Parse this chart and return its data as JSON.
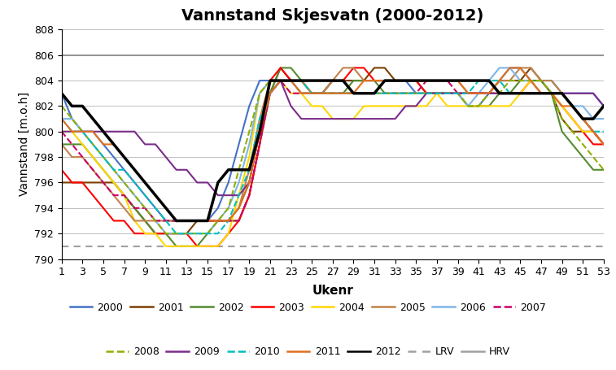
{
  "title": "Vannstand Skjesvatn (2000-2012)",
  "xlabel": "Ukenr",
  "ylabel": "Vannstand [m.o.h]",
  "ylim": [
    790,
    808
  ],
  "xlim": [
    1,
    53
  ],
  "xticks": [
    1,
    3,
    5,
    7,
    9,
    11,
    13,
    15,
    17,
    19,
    21,
    23,
    25,
    27,
    29,
    31,
    33,
    35,
    37,
    39,
    41,
    43,
    45,
    47,
    49,
    51,
    53
  ],
  "yticks": [
    790,
    792,
    794,
    796,
    798,
    800,
    802,
    804,
    806,
    808
  ],
  "hrv": 806,
  "lrv": 791,
  "series": {
    "2000": {
      "color": "#4472C4",
      "linestyle": "solid",
      "linewidth": 1.5,
      "values": [
        803,
        801,
        800,
        800,
        799,
        798,
        797,
        796,
        795,
        794,
        793,
        793,
        793,
        793,
        793,
        794,
        796,
        799,
        802,
        804,
        804,
        804,
        804,
        803,
        803,
        803,
        804,
        804,
        804,
        804,
        804,
        804,
        804,
        804,
        803,
        803,
        803,
        803,
        803,
        802,
        802,
        803,
        804,
        805,
        805,
        804,
        804,
        804,
        803,
        803,
        803,
        803,
        802
      ]
    },
    "2001": {
      "color": "#7B3F00",
      "linestyle": "solid",
      "linewidth": 1.5,
      "values": [
        796,
        796,
        796,
        796,
        796,
        796,
        795,
        794,
        793,
        792,
        792,
        792,
        792,
        793,
        793,
        793,
        793,
        793,
        795,
        799,
        803,
        805,
        804,
        804,
        803,
        803,
        804,
        804,
        804,
        804,
        805,
        805,
        804,
        804,
        804,
        803,
        803,
        803,
        803,
        803,
        803,
        803,
        804,
        804,
        804,
        805,
        804,
        803,
        801,
        800,
        800,
        800,
        799
      ]
    },
    "2002": {
      "color": "#558B2F",
      "linestyle": "solid",
      "linewidth": 1.5,
      "values": [
        799,
        799,
        799,
        798,
        797,
        796,
        795,
        794,
        793,
        792,
        792,
        791,
        791,
        791,
        792,
        793,
        793,
        794,
        796,
        800,
        803,
        805,
        805,
        804,
        803,
        803,
        803,
        803,
        804,
        804,
        804,
        803,
        803,
        803,
        803,
        803,
        803,
        803,
        803,
        802,
        802,
        802,
        803,
        803,
        804,
        804,
        804,
        803,
        800,
        799,
        798,
        797,
        797
      ]
    },
    "2003": {
      "color": "#FF0000",
      "linestyle": "solid",
      "linewidth": 1.5,
      "values": [
        797,
        796,
        796,
        795,
        794,
        793,
        793,
        792,
        792,
        792,
        792,
        792,
        792,
        791,
        791,
        791,
        792,
        793,
        795,
        799,
        804,
        805,
        804,
        804,
        804,
        804,
        804,
        804,
        805,
        805,
        804,
        804,
        804,
        804,
        804,
        803,
        803,
        803,
        803,
        803,
        803,
        803,
        803,
        803,
        803,
        804,
        803,
        803,
        802,
        801,
        800,
        799,
        799
      ]
    },
    "2004": {
      "color": "#FFD700",
      "linestyle": "solid",
      "linewidth": 1.5,
      "values": [
        800,
        800,
        799,
        798,
        797,
        796,
        795,
        793,
        792,
        792,
        791,
        791,
        791,
        791,
        791,
        791,
        792,
        795,
        798,
        803,
        804,
        804,
        803,
        803,
        802,
        802,
        801,
        801,
        801,
        802,
        802,
        802,
        802,
        802,
        802,
        802,
        803,
        802,
        802,
        802,
        802,
        802,
        802,
        802,
        803,
        804,
        803,
        803,
        802,
        801,
        800,
        800,
        799
      ]
    },
    "2005": {
      "color": "#C0834B",
      "linestyle": "solid",
      "linewidth": 1.5,
      "values": [
        799,
        798,
        798,
        797,
        796,
        795,
        794,
        793,
        793,
        793,
        793,
        793,
        793,
        793,
        793,
        793,
        793,
        794,
        797,
        801,
        804,
        804,
        804,
        804,
        803,
        803,
        804,
        805,
        805,
        804,
        804,
        804,
        804,
        804,
        804,
        804,
        804,
        804,
        804,
        803,
        803,
        803,
        804,
        804,
        805,
        805,
        804,
        804,
        803,
        802,
        801,
        800,
        799
      ]
    },
    "2006": {
      "color": "#7EB5E8",
      "linestyle": "solid",
      "linewidth": 1.5,
      "values": [
        801,
        801,
        800,
        799,
        798,
        797,
        796,
        795,
        794,
        793,
        792,
        792,
        792,
        792,
        792,
        793,
        794,
        796,
        799,
        803,
        804,
        804,
        804,
        803,
        803,
        803,
        803,
        803,
        803,
        803,
        803,
        803,
        803,
        803,
        803,
        803,
        803,
        803,
        803,
        802,
        803,
        804,
        805,
        805,
        804,
        804,
        803,
        803,
        803,
        802,
        802,
        801,
        801
      ]
    },
    "2007": {
      "color": "#CC0066",
      "linestyle": "dashed",
      "linewidth": 1.5,
      "values": [
        800,
        799,
        798,
        797,
        796,
        795,
        795,
        794,
        794,
        793,
        793,
        793,
        793,
        793,
        793,
        793,
        793,
        793,
        795,
        799,
        803,
        804,
        803,
        803,
        803,
        803,
        803,
        803,
        803,
        803,
        803,
        803,
        803,
        803,
        803,
        804,
        804,
        804,
        803,
        803,
        803,
        803,
        803,
        803,
        803,
        803,
        803,
        803,
        803,
        802,
        801,
        800,
        799
      ]
    },
    "2008": {
      "color": "#8DB000",
      "linestyle": "dashed",
      "linewidth": 1.5,
      "values": [
        802,
        801,
        800,
        799,
        798,
        797,
        796,
        795,
        794,
        793,
        792,
        792,
        792,
        792,
        792,
        793,
        794,
        797,
        800,
        803,
        804,
        804,
        804,
        803,
        803,
        803,
        803,
        803,
        803,
        803,
        803,
        803,
        803,
        803,
        803,
        803,
        803,
        803,
        803,
        802,
        802,
        803,
        803,
        804,
        804,
        804,
        804,
        803,
        801,
        800,
        799,
        798,
        797
      ]
    },
    "2009": {
      "color": "#7B2D8B",
      "linestyle": "solid",
      "linewidth": 1.5,
      "values": [
        800,
        800,
        800,
        800,
        800,
        800,
        800,
        800,
        799,
        799,
        798,
        797,
        797,
        796,
        796,
        795,
        795,
        795,
        796,
        800,
        803,
        804,
        802,
        801,
        801,
        801,
        801,
        801,
        801,
        801,
        801,
        801,
        801,
        802,
        802,
        803,
        803,
        803,
        803,
        803,
        803,
        803,
        803,
        803,
        803,
        803,
        803,
        803,
        803,
        803,
        803,
        803,
        802
      ]
    },
    "2010": {
      "color": "#00BFBF",
      "linestyle": "dashed",
      "linewidth": 1.5,
      "values": [
        801,
        800,
        800,
        799,
        798,
        797,
        797,
        796,
        795,
        794,
        793,
        792,
        792,
        792,
        792,
        792,
        793,
        795,
        797,
        801,
        803,
        804,
        804,
        804,
        803,
        803,
        803,
        803,
        803,
        803,
        803,
        803,
        803,
        803,
        803,
        803,
        803,
        803,
        803,
        803,
        804,
        804,
        804,
        803,
        803,
        803,
        803,
        803,
        803,
        802,
        801,
        800,
        800
      ]
    },
    "2011": {
      "color": "#E07020",
      "linestyle": "solid",
      "linewidth": 1.5,
      "values": [
        801,
        800,
        800,
        800,
        799,
        799,
        798,
        797,
        796,
        795,
        794,
        793,
        793,
        793,
        793,
        793,
        793,
        794,
        796,
        800,
        803,
        804,
        804,
        803,
        803,
        803,
        803,
        803,
        803,
        804,
        804,
        804,
        804,
        804,
        804,
        804,
        804,
        804,
        804,
        803,
        803,
        803,
        804,
        805,
        805,
        804,
        803,
        803,
        802,
        802,
        801,
        800,
        799
      ]
    },
    "2012": {
      "color": "#000000",
      "linestyle": "solid",
      "linewidth": 2.5,
      "values": [
        803,
        802,
        802,
        801,
        800,
        799,
        798,
        797,
        796,
        795,
        794,
        793,
        793,
        793,
        793,
        796,
        797,
        797,
        797,
        800,
        804,
        804,
        804,
        804,
        804,
        804,
        804,
        804,
        803,
        803,
        803,
        804,
        804,
        804,
        804,
        804,
        804,
        804,
        804,
        804,
        804,
        804,
        803,
        803,
        803,
        803,
        803,
        803,
        803,
        802,
        801,
        801,
        802
      ]
    }
  }
}
